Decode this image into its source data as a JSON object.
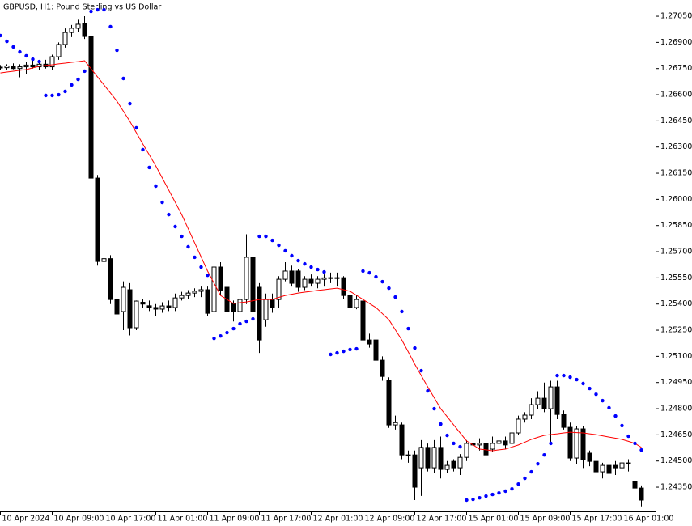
{
  "chart_data": {
    "type": "candlestick",
    "title": "GBPUSD, H1:  Pound Sterling vs US Dollar",
    "categories": [
      "10 Apr 2024",
      null,
      null,
      null,
      null,
      null,
      null,
      null,
      "10 Apr 09:00",
      null,
      null,
      null,
      null,
      null,
      null,
      null,
      "10 Apr 17:00",
      null,
      null,
      null,
      null,
      null,
      null,
      null,
      "11 Apr 01:00",
      null,
      null,
      null,
      null,
      null,
      null,
      null,
      "11 Apr 09:00",
      null,
      null,
      null,
      null,
      null,
      null,
      null,
      "11 Apr 17:00",
      null,
      null,
      null,
      null,
      null,
      null,
      null,
      "12 Apr 01:00",
      null,
      null,
      null,
      null,
      null,
      null,
      null,
      "12 Apr 09:00",
      null,
      null,
      null,
      null,
      null,
      null,
      null,
      "12 Apr 17:00",
      null,
      null,
      null,
      null,
      null,
      null,
      null,
      "15 Apr 01:00",
      null,
      null,
      null,
      null,
      null,
      null,
      null,
      "15 Apr 09:00",
      null,
      null,
      null,
      null,
      null,
      null,
      null,
      "15 Apr 17:00",
      null,
      null,
      null,
      null,
      null,
      null,
      null,
      "16 Apr 01:00",
      null,
      null,
      null
    ],
    "open": [
      1.26758,
      1.26755,
      1.26765,
      1.2675,
      1.2676,
      1.2677,
      1.2676,
      1.26775,
      1.2676,
      1.26818,
      1.26888,
      1.26957,
      1.26981,
      1.2701,
      1.26934,
      1.26122,
      1.25644,
      1.2566,
      1.25426,
      1.25357,
      1.25482,
      1.25264,
      1.2541,
      1.2539,
      1.2538,
      1.25371,
      1.25389,
      1.2538,
      1.25435,
      1.25449,
      1.25463,
      1.25473,
      1.25482,
      1.25357,
      1.25612,
      1.25496,
      1.25403,
      1.25357,
      1.25426,
      1.25668,
      1.25496,
      1.2531,
      1.25426,
      1.25426,
      1.25542,
      1.25589,
      1.25589,
      1.25496,
      1.25542,
      1.25519,
      1.25542,
      1.2555,
      1.25551,
      1.25551,
      1.25449,
      1.2538,
      1.25417,
      1.25194,
      1.25194,
      1.25078,
      1.24962,
      1.24707,
      1.24707,
      1.24535,
      1.24535,
      1.24461,
      1.24578,
      1.24461,
      1.24578,
      1.24452,
      1.24498,
      1.24461,
      1.24521,
      1.24601,
      1.24592,
      1.24601,
      1.24568,
      1.24601,
      1.24615,
      1.24601,
      1.24661,
      1.2474,
      1.24763,
      1.24823,
      1.2486,
      1.248,
      1.24925,
      1.24767,
      1.24693,
      1.24517,
      1.24684,
      1.24545,
      1.24498,
      1.24438,
      1.24475,
      1.24475,
      1.24461,
      1.24489,
      1.24382,
      1.24345
    ],
    "high": [
      1.2677,
      1.26775,
      1.2678,
      1.26775,
      1.2679,
      1.268,
      1.2679,
      1.268,
      1.2683,
      1.269,
      1.2698,
      1.27,
      1.2703,
      1.2705,
      1.27,
      1.2614,
      1.257,
      1.2568,
      1.2545,
      1.2553,
      1.2552,
      1.2542,
      1.2543,
      1.2542,
      1.254,
      1.2541,
      1.2542,
      1.2546,
      1.2547,
      1.2548,
      1.2549,
      1.255,
      1.255,
      1.257,
      1.2564,
      1.2552,
      1.2542,
      1.2546,
      1.258,
      1.2572,
      1.2552,
      1.2546,
      1.2546,
      1.2556,
      1.2564,
      1.2562,
      1.256,
      1.2556,
      1.2557,
      1.2556,
      1.2557,
      1.2558,
      1.2558,
      1.2556,
      1.2546,
      1.2545,
      1.2543,
      1.2523,
      1.2521,
      1.251,
      1.2498,
      1.2476,
      1.2472,
      1.2456,
      1.2456,
      1.2462,
      1.246,
      1.2462,
      1.2464,
      1.245,
      1.2451,
      1.2454,
      1.2462,
      1.2462,
      1.2463,
      1.2462,
      1.2464,
      1.2464,
      1.2464,
      1.247,
      1.2476,
      1.2478,
      1.2486,
      1.249,
      1.2495,
      1.2496,
      1.2496,
      1.2479,
      1.2472,
      1.247,
      1.247,
      1.2456,
      1.2452,
      1.2449,
      1.2449,
      1.245,
      1.2451,
      1.2451,
      1.2442,
      1.2436
    ],
    "low": [
      1.2674,
      1.2674,
      1.26745,
      1.267,
      1.2672,
      1.2675,
      1.2674,
      1.2675,
      1.2674,
      1.268,
      1.2687,
      1.2693,
      1.2696,
      1.2692,
      1.261,
      1.2562,
      1.256,
      1.254,
      1.25203,
      1.2525,
      1.2522,
      1.2525,
      1.2538,
      1.2536,
      1.2533,
      1.2535,
      1.2536,
      1.2536,
      1.2542,
      1.2543,
      1.2544,
      1.2544,
      1.2533,
      1.2533,
      1.2545,
      1.2534,
      1.253,
      1.2532,
      1.254,
      1.2533,
      1.2512,
      1.2527,
      1.2535,
      1.2538,
      1.2553,
      1.255,
      1.2547,
      1.2548,
      1.255,
      1.2549,
      1.255,
      1.2552,
      1.255,
      1.2543,
      1.2536,
      1.2537,
      1.2518,
      1.2515,
      1.2506,
      1.2496,
      1.2469,
      1.2468,
      1.2451,
      1.2449,
      1.24276,
      1.243,
      1.2444,
      1.2443,
      1.244,
      1.2443,
      1.2444,
      1.2442,
      1.245,
      1.2457,
      1.2456,
      1.2447,
      1.2455,
      1.2459,
      1.2457,
      1.2459,
      1.2465,
      1.2472,
      1.2474,
      1.248,
      1.2478,
      1.246,
      1.2474,
      1.2468,
      1.245,
      1.2448,
      1.2446,
      1.2447,
      1.2442,
      1.244,
      1.2438,
      1.2442,
      1.243,
      1.2444,
      1.243,
      1.2424
    ],
    "close": [
      1.26755,
      1.26765,
      1.2675,
      1.2676,
      1.2677,
      1.2676,
      1.26775,
      1.2676,
      1.26818,
      1.26888,
      1.26957,
      1.26981,
      1.27004,
      1.26934,
      1.26122,
      1.25644,
      1.2566,
      1.25426,
      1.25343,
      1.25496,
      1.25264,
      1.25417,
      1.254,
      1.2538,
      1.25371,
      1.25389,
      1.2538,
      1.25435,
      1.25449,
      1.25463,
      1.25473,
      1.25482,
      1.25347,
      1.25612,
      1.2548,
      1.25357,
      1.25357,
      1.25426,
      1.25668,
      1.25357,
      1.25194,
      1.25426,
      1.2538,
      1.25542,
      1.25589,
      1.25519,
      1.25496,
      1.25542,
      1.25519,
      1.25542,
      1.2555,
      1.25551,
      1.25551,
      1.25449,
      1.2538,
      1.25426,
      1.25194,
      1.25171,
      1.25078,
      1.24985,
      1.24707,
      1.2472,
      1.24535,
      1.2453,
      1.2435,
      1.24578,
      1.24461,
      1.24578,
      1.24452,
      1.24475,
      1.24461,
      1.24521,
      1.24601,
      1.24592,
      1.24601,
      1.24535,
      1.24601,
      1.24615,
      1.24592,
      1.24661,
      1.2474,
      1.24763,
      1.24823,
      1.2486,
      1.248,
      1.24925,
      1.24767,
      1.24693,
      1.24517,
      1.24684,
      1.24507,
      1.24498,
      1.24438,
      1.24475,
      1.24429,
      1.24461,
      1.24489,
      1.24489,
      1.24345,
      1.24276
    ],
    "up_color": "#ffffff",
    "down_color": "#000000",
    "ma": {
      "color": "#ff0000",
      "values": [
        1.26725,
        1.2673,
        1.26735,
        1.2674,
        1.26744,
        1.26754,
        1.26763,
        1.26768,
        1.26772,
        1.26777,
        1.26781,
        1.26786,
        1.2679,
        1.26795,
        1.26749,
        1.26702,
        1.26656,
        1.2661,
        1.26563,
        1.26505,
        1.26447,
        1.26382,
        1.26317,
        1.26255,
        1.26192,
        1.26123,
        1.26053,
        1.25983,
        1.25913,
        1.25832,
        1.25751,
        1.2567,
        1.25589,
        1.25519,
        1.25449,
        1.25426,
        1.25403,
        1.25408,
        1.25412,
        1.25419,
        1.25426,
        1.25426,
        1.25426,
        1.25438,
        1.25449,
        1.25456,
        1.25463,
        1.25468,
        1.25473,
        1.25478,
        1.25482,
        1.25487,
        1.25491,
        1.25482,
        1.25473,
        1.2545,
        1.25426,
        1.25403,
        1.2538,
        1.25345,
        1.2531,
        1.25252,
        1.25194,
        1.25125,
        1.25055,
        1.2499,
        1.24925,
        1.24863,
        1.248,
        1.24754,
        1.24707,
        1.24661,
        1.24615,
        1.24592,
        1.24568,
        1.24564,
        1.24559,
        1.24564,
        1.24568,
        1.2458,
        1.24592,
        1.24608,
        1.24624,
        1.24636,
        1.24647,
        1.24652,
        1.24656,
        1.24661,
        1.24665,
        1.24663,
        1.24661,
        1.24656,
        1.24651,
        1.24644,
        1.24637,
        1.24631,
        1.24624,
        1.24613,
        1.24601,
        1.24578
      ]
    },
    "sar": {
      "color": "#0000ff",
      "values": [
        1.26939,
        1.26906,
        1.26874,
        1.26846,
        1.26823,
        1.26804,
        1.2679,
        1.26596,
        1.26596,
        1.266,
        1.26619,
        1.26656,
        1.26688,
        1.26735,
        1.27078,
        1.27087,
        1.27087,
        1.2699,
        1.26855,
        1.26693,
        1.26549,
        1.2641,
        1.26285,
        1.26183,
        1.26076,
        1.25983,
        1.25913,
        1.25844,
        1.25788,
        1.25728,
        1.25668,
        1.25612,
        1.25565,
        1.25203,
        1.25217,
        1.25236,
        1.25259,
        1.25287,
        1.25301,
        1.25315,
        1.25788,
        1.25788,
        1.25765,
        1.25737,
        1.25705,
        1.25677,
        1.25649,
        1.2563,
        1.25612,
        1.25598,
        1.25584,
        1.25111,
        1.2512,
        1.25129,
        1.25139,
        1.25143,
        1.25589,
        1.25579,
        1.25556,
        1.25528,
        1.25491,
        1.2544,
        1.25357,
        1.25259,
        1.25148,
        1.25018,
        1.24902,
        1.248,
        1.24712,
        1.24647,
        1.24601,
        1.24582,
        1.24276,
        1.2428,
        1.24289,
        1.24299,
        1.24308,
        1.24317,
        1.24327,
        1.2434,
        1.24368,
        1.24401,
        1.24438,
        1.24484,
        1.24535,
        1.24601,
        1.2499,
        1.2499,
        1.24981,
        1.24967,
        1.24944,
        1.24916,
        1.24883,
        1.24846,
        1.24805,
        1.24758,
        1.24703,
        1.24642,
        1.24601,
        1.24563
      ]
    },
    "ylim": [
      1.24211,
      1.27143
    ],
    "yticks": [
      {
        "value": 1.2705,
        "label": "1.27050"
      },
      {
        "value": 1.269,
        "label": "1.26900"
      },
      {
        "value": 1.2675,
        "label": "1.26750"
      },
      {
        "value": 1.266,
        "label": "1.26600"
      },
      {
        "value": 1.2645,
        "label": "1.26450"
      },
      {
        "value": 1.263,
        "label": "1.26300"
      },
      {
        "value": 1.2615,
        "label": "1.26150"
      },
      {
        "value": 1.26,
        "label": "1.26000"
      },
      {
        "value": 1.2585,
        "label": "1.25850"
      },
      {
        "value": 1.257,
        "label": "1.25700"
      },
      {
        "value": 1.2555,
        "label": "1.25550"
      },
      {
        "value": 1.254,
        "label": "1.25400"
      },
      {
        "value": 1.2525,
        "label": "1.25250"
      },
      {
        "value": 1.251,
        "label": "1.25100"
      },
      {
        "value": 1.2495,
        "label": "1.24950"
      },
      {
        "value": 1.248,
        "label": "1.24800"
      },
      {
        "value": 1.2465,
        "label": "1.24650"
      },
      {
        "value": 1.245,
        "label": "1.24500"
      },
      {
        "value": 1.2435,
        "label": "1.24350"
      }
    ],
    "grid": false
  }
}
